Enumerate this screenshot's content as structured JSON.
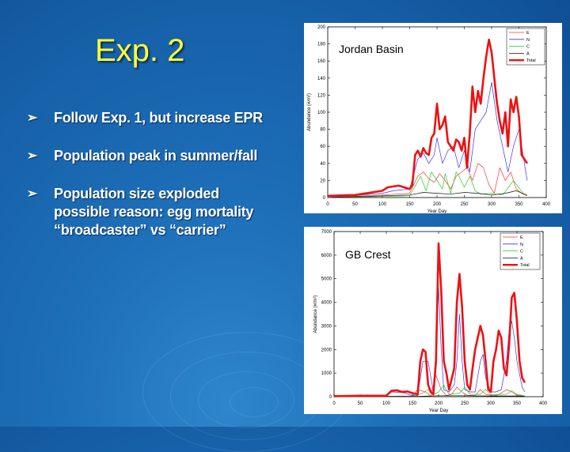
{
  "slide": {
    "title": "Exp. 2",
    "bullet_glyph": "➢",
    "bullets": [
      {
        "lines": [
          "Follow Exp. 1, but increase EPR"
        ]
      },
      {
        "lines": [
          "Population peak in summer/fall"
        ]
      },
      {
        "lines": [
          "Population size exploded",
          "possible reason: egg mortality",
          "“broadcaster” vs “carrier”"
        ]
      }
    ]
  },
  "chart_data": [
    {
      "type": "line",
      "title": "Jordan Basin",
      "xlabel": "Year Day",
      "ylabel": "Abundance (#/m²)",
      "xlim": [
        0,
        400
      ],
      "ylim": [
        0,
        200
      ],
      "xticks": [
        0,
        50,
        100,
        150,
        200,
        250,
        300,
        350,
        400
      ],
      "yticks": [
        0,
        20,
        40,
        60,
        80,
        100,
        120,
        140,
        160,
        180,
        200
      ],
      "legend_position": "top-right",
      "series": [
        {
          "name": "E",
          "color": "#ff3333",
          "x": [
            0,
            100,
            150,
            165,
            175,
            185,
            195,
            205,
            215,
            225,
            235,
            245,
            255,
            265,
            275,
            285,
            295,
            305,
            315,
            325,
            335,
            345,
            355,
            365
          ],
          "y": [
            0,
            3,
            5,
            25,
            30,
            22,
            18,
            28,
            20,
            10,
            25,
            30,
            35,
            20,
            40,
            35,
            15,
            5,
            35,
            20,
            30,
            10,
            5,
            2
          ]
        },
        {
          "name": "N",
          "color": "#3333ff",
          "x": [
            0,
            100,
            120,
            150,
            165,
            175,
            185,
            195,
            200,
            210,
            220,
            230,
            240,
            250,
            260,
            270,
            280,
            290,
            300,
            310,
            320,
            330,
            340,
            350,
            365
          ],
          "y": [
            0,
            5,
            8,
            10,
            45,
            52,
            40,
            50,
            70,
            40,
            55,
            60,
            35,
            55,
            30,
            80,
            90,
            100,
            135,
            90,
            60,
            30,
            60,
            80,
            20
          ]
        },
        {
          "name": "C",
          "color": "#22cc22",
          "x": [
            0,
            150,
            170,
            180,
            190,
            200,
            210,
            215,
            225,
            235,
            240,
            250,
            260,
            270,
            280,
            300,
            320,
            340,
            360
          ],
          "y": [
            0,
            2,
            25,
            8,
            30,
            20,
            10,
            28,
            5,
            30,
            25,
            12,
            25,
            8,
            4,
            5,
            3,
            20,
            3
          ]
        },
        {
          "name": "A",
          "color": "#111111",
          "x": [
            0,
            100,
            150,
            175,
            200,
            225,
            250,
            275,
            300,
            325,
            345,
            360,
            365
          ],
          "y": [
            0,
            2,
            3,
            6,
            5,
            4,
            6,
            5,
            3,
            5,
            8,
            4,
            3
          ]
        },
        {
          "name": "Total",
          "color": "#ee1111",
          "x": [
            0,
            50,
            100,
            110,
            130,
            150,
            155,
            160,
            165,
            170,
            175,
            180,
            185,
            190,
            195,
            200,
            205,
            210,
            215,
            220,
            225,
            230,
            235,
            240,
            245,
            250,
            255,
            260,
            265,
            270,
            275,
            280,
            285,
            290,
            295,
            300,
            305,
            310,
            315,
            320,
            325,
            330,
            335,
            340,
            345,
            350,
            355,
            360,
            365
          ],
          "y": [
            2,
            3,
            8,
            12,
            14,
            10,
            15,
            50,
            55,
            48,
            58,
            52,
            50,
            70,
            75,
            110,
            80,
            85,
            95,
            65,
            60,
            55,
            68,
            65,
            55,
            70,
            35,
            75,
            130,
            100,
            125,
            110,
            140,
            165,
            185,
            170,
            140,
            110,
            90,
            75,
            100,
            60,
            115,
            100,
            118,
            95,
            50,
            45,
            40
          ]
        }
      ]
    },
    {
      "type": "line",
      "title": "GB Crest",
      "xlabel": "Year Day",
      "ylabel": "Abundance (#/m²)",
      "xlim": [
        0,
        400
      ],
      "ylim": [
        0,
        7000
      ],
      "xticks": [
        0,
        50,
        100,
        150,
        200,
        250,
        300,
        350,
        400
      ],
      "yticks": [
        0,
        1000,
        2000,
        3000,
        4000,
        5000,
        6000,
        7000
      ],
      "legend_position": "top-right",
      "series": [
        {
          "name": "E",
          "color": "#ff3333",
          "x": [
            0,
            150,
            160,
            175,
            185,
            195,
            205,
            215,
            225,
            235,
            245,
            255,
            270,
            280,
            290,
            305,
            315,
            330,
            340,
            350,
            365
          ],
          "y": [
            0,
            30,
            300,
            200,
            20,
            900,
            300,
            50,
            100,
            400,
            200,
            60,
            50,
            300,
            100,
            40,
            80,
            300,
            200,
            60,
            20
          ]
        },
        {
          "name": "N",
          "color": "#3333ff",
          "x": [
            0,
            100,
            110,
            130,
            150,
            160,
            170,
            180,
            190,
            195,
            200,
            205,
            210,
            220,
            230,
            235,
            240,
            245,
            250,
            260,
            270,
            280,
            285,
            290,
            300,
            310,
            320,
            330,
            335,
            340,
            345,
            350,
            360,
            365
          ],
          "y": [
            0,
            30,
            200,
            180,
            50,
            50,
            1500,
            1500,
            200,
            2000,
            4600,
            2000,
            300,
            200,
            500,
            1500,
            3500,
            1500,
            300,
            200,
            200,
            1500,
            1800,
            800,
            200,
            200,
            300,
            1500,
            2800,
            3200,
            2500,
            1500,
            400,
            200
          ]
        },
        {
          "name": "C",
          "color": "#22cc22",
          "x": [
            0,
            150,
            170,
            180,
            190,
            200,
            210,
            220,
            240,
            250,
            260,
            280,
            290,
            300,
            330,
            340,
            350,
            365
          ],
          "y": [
            0,
            10,
            150,
            300,
            100,
            200,
            500,
            100,
            150,
            400,
            100,
            100,
            300,
            80,
            100,
            250,
            100,
            30
          ]
        },
        {
          "name": "A",
          "color": "#111111",
          "x": [
            0,
            100,
            150,
            200,
            250,
            300,
            350,
            365
          ],
          "y": [
            0,
            5,
            10,
            40,
            40,
            30,
            30,
            20
          ]
        },
        {
          "name": "Total",
          "color": "#ee1111",
          "x": [
            0,
            50,
            100,
            110,
            120,
            130,
            140,
            150,
            160,
            165,
            170,
            175,
            180,
            185,
            190,
            195,
            200,
            205,
            210,
            215,
            220,
            230,
            235,
            240,
            245,
            250,
            255,
            260,
            265,
            270,
            275,
            280,
            285,
            290,
            295,
            300,
            305,
            310,
            315,
            320,
            325,
            330,
            335,
            340,
            345,
            350,
            355,
            360,
            365
          ],
          "y": [
            20,
            40,
            40,
            250,
            270,
            200,
            220,
            150,
            100,
            1500,
            2000,
            1900,
            500,
            200,
            100,
            1500,
            6500,
            4500,
            1500,
            1000,
            300,
            1200,
            4000,
            5200,
            3800,
            1500,
            500,
            300,
            1200,
            2000,
            2500,
            3000,
            2600,
            1500,
            300,
            200,
            1500,
            2000,
            2800,
            2500,
            1200,
            900,
            2200,
            4200,
            4400,
            3200,
            1500,
            800,
            600
          ]
        }
      ]
    }
  ]
}
